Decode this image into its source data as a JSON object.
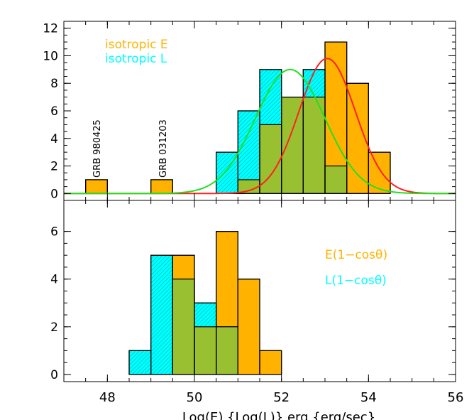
{
  "colors": {
    "E": "#FFB300",
    "L": "#00FFFF",
    "overlap": "#99C030",
    "fitE": "#FF2020",
    "fitL": "#20E020"
  },
  "chart_data": [
    {
      "type": "bar",
      "panel": "top",
      "xlim": [
        47,
        56
      ],
      "ylim": [
        -0.5,
        12.5
      ],
      "yticks": [
        0,
        2,
        4,
        6,
        8,
        10,
        12
      ],
      "xticks": [
        48,
        50,
        52,
        54,
        56
      ],
      "legend": [
        "isotropic E",
        "isotropic L"
      ],
      "legend_position": "top-left",
      "annotations": [
        "GRB 980425",
        "GRB 031203"
      ],
      "bin_width": 0.5,
      "series": [
        {
          "name": "isotropic E",
          "bin_starts": [
            47.5,
            49.0,
            51.0,
            51.5,
            52.0,
            52.5,
            53.0,
            53.5,
            54.0
          ],
          "values": [
            1,
            1,
            1,
            5,
            7,
            7,
            11,
            8,
            3
          ]
        },
        {
          "name": "isotropic L",
          "bin_starts": [
            50.5,
            51.0,
            51.5,
            52.0,
            52.5,
            53.0
          ],
          "values": [
            3,
            6,
            9,
            7,
            9,
            2
          ]
        }
      ],
      "fits": [
        {
          "name": "isotropic E fit",
          "mean": 53.05,
          "sigma": 0.65,
          "peak": 9.8
        },
        {
          "name": "isotropic L fit",
          "mean": 52.2,
          "sigma": 0.8,
          "peak": 9.0
        }
      ]
    },
    {
      "type": "bar",
      "panel": "bottom",
      "xlim": [
        47,
        56
      ],
      "ylim": [
        -0.3,
        7.3
      ],
      "yticks": [
        0,
        2,
        4,
        6
      ],
      "xticks": [
        48,
        50,
        52,
        54,
        56
      ],
      "xtick_labels": [
        "48",
        "50",
        "52",
        "54",
        "56"
      ],
      "xlabel": "Log(E) {Log(L)} erg {erg/sec}",
      "legend": [
        "E(1−cosθ)",
        "L(1−cosθ)"
      ],
      "legend_position": "right",
      "bin_width": 0.5,
      "series": [
        {
          "name": "E(1−cosθ)",
          "bin_starts": [
            49.5,
            50.0,
            50.5,
            51.0,
            51.5
          ],
          "values": [
            5,
            2,
            6,
            4,
            1
          ]
        },
        {
          "name": "L(1−cosθ)",
          "bin_starts": [
            48.5,
            49.0,
            49.5,
            50.0,
            50.5
          ],
          "values": [
            1,
            5,
            4,
            3,
            2
          ]
        }
      ]
    }
  ]
}
